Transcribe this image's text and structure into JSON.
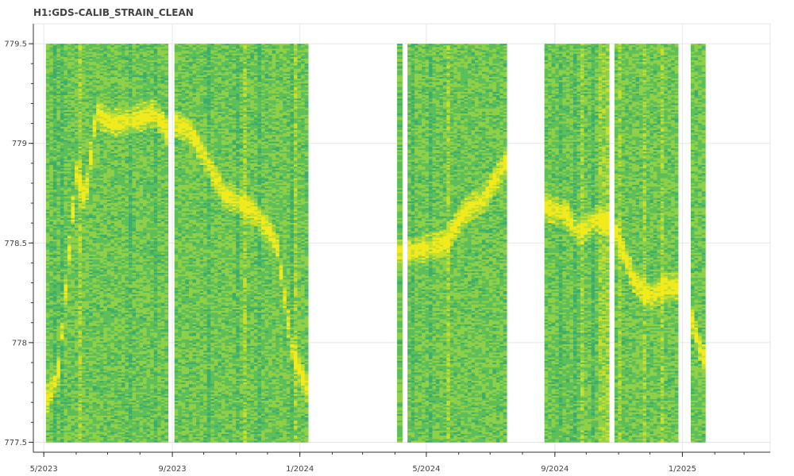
{
  "chart_data": {
    "type": "heatmap",
    "title": "H1:GDS-CALIB_STRAIN_CLEAN",
    "xlabel": "",
    "ylabel": "",
    "ylim": [
      777.45,
      779.6
    ],
    "xlim": [
      "2023-04-21",
      "2025-03-26"
    ],
    "x_ticks": [
      {
        "date": "2023-05-01",
        "label": "5/2023"
      },
      {
        "date": "2023-09-01",
        "label": "9/2023"
      },
      {
        "date": "2024-01-01",
        "label": "1/2024"
      },
      {
        "date": "2024-05-01",
        "label": "5/2024"
      },
      {
        "date": "2024-09-01",
        "label": "9/2024"
      },
      {
        "date": "2025-01-01",
        "label": "1/2025"
      }
    ],
    "y_ticks": [
      {
        "value": 777.5,
        "label": "777.5"
      },
      {
        "value": 778,
        "label": "778"
      },
      {
        "value": 778.5,
        "label": "778.5"
      },
      {
        "value": 779,
        "label": "779"
      },
      {
        "value": 779.5,
        "label": "779.5"
      }
    ],
    "frequency_range": [
      777.5,
      779.5
    ],
    "grid": true,
    "colormap": [
      "#2f9e72",
      "#3dae6a",
      "#5cbf5a",
      "#8fd046",
      "#c4df2e",
      "#f1ea1c"
    ],
    "segments": [
      {
        "start": "2023-05-03",
        "end": "2023-08-28"
      },
      {
        "start": "2023-09-03",
        "end": "2024-01-09"
      },
      {
        "start": "2024-04-03",
        "end": "2024-04-08"
      },
      {
        "start": "2024-04-13",
        "end": "2024-07-17"
      },
      {
        "start": "2024-08-22",
        "end": "2024-10-23"
      },
      {
        "start": "2024-10-28",
        "end": "2024-12-28"
      },
      {
        "start": "2025-01-09",
        "end": "2025-01-23"
      }
    ],
    "peak_track": [
      {
        "date": "2023-05-03",
        "freq": 777.7
      },
      {
        "date": "2023-05-15",
        "freq": 777.85
      },
      {
        "date": "2023-06-01",
        "freq": 778.85
      },
      {
        "date": "2023-06-10",
        "freq": 778.72
      },
      {
        "date": "2023-06-20",
        "freq": 779.15
      },
      {
        "date": "2023-07-05",
        "freq": 779.1
      },
      {
        "date": "2023-07-25",
        "freq": 779.12
      },
      {
        "date": "2023-08-15",
        "freq": 779.15
      },
      {
        "date": "2023-08-28",
        "freq": 779.05
      },
      {
        "date": "2023-09-03",
        "freq": 779.1
      },
      {
        "date": "2023-09-20",
        "freq": 779.05
      },
      {
        "date": "2023-10-05",
        "freq": 778.9
      },
      {
        "date": "2023-10-20",
        "freq": 778.75
      },
      {
        "date": "2023-11-05",
        "freq": 778.7
      },
      {
        "date": "2023-11-20",
        "freq": 778.65
      },
      {
        "date": "2023-12-10",
        "freq": 778.5
      },
      {
        "date": "2023-12-25",
        "freq": 777.95
      },
      {
        "date": "2024-01-09",
        "freq": 777.75
      },
      {
        "date": "2024-04-03",
        "freq": 778.5
      },
      {
        "date": "2024-04-08",
        "freq": 778.4
      },
      {
        "date": "2024-04-13",
        "freq": 778.45
      },
      {
        "date": "2024-05-05",
        "freq": 778.48
      },
      {
        "date": "2024-05-20",
        "freq": 778.5
      },
      {
        "date": "2024-06-05",
        "freq": 778.65
      },
      {
        "date": "2024-06-25",
        "freq": 778.72
      },
      {
        "date": "2024-07-17",
        "freq": 778.92
      },
      {
        "date": "2024-08-22",
        "freq": 778.68
      },
      {
        "date": "2024-09-10",
        "freq": 778.65
      },
      {
        "date": "2024-09-25",
        "freq": 778.55
      },
      {
        "date": "2024-10-10",
        "freq": 778.62
      },
      {
        "date": "2024-10-23",
        "freq": 778.6
      },
      {
        "date": "2024-10-28",
        "freq": 778.58
      },
      {
        "date": "2024-11-15",
        "freq": 778.32
      },
      {
        "date": "2024-12-01",
        "freq": 778.22
      },
      {
        "date": "2024-12-15",
        "freq": 778.28
      },
      {
        "date": "2024-12-28",
        "freq": 778.28
      },
      {
        "date": "2025-01-09",
        "freq": 778.15
      },
      {
        "date": "2025-01-16",
        "freq": 778.0
      },
      {
        "date": "2025-01-23",
        "freq": 777.9
      }
    ]
  }
}
